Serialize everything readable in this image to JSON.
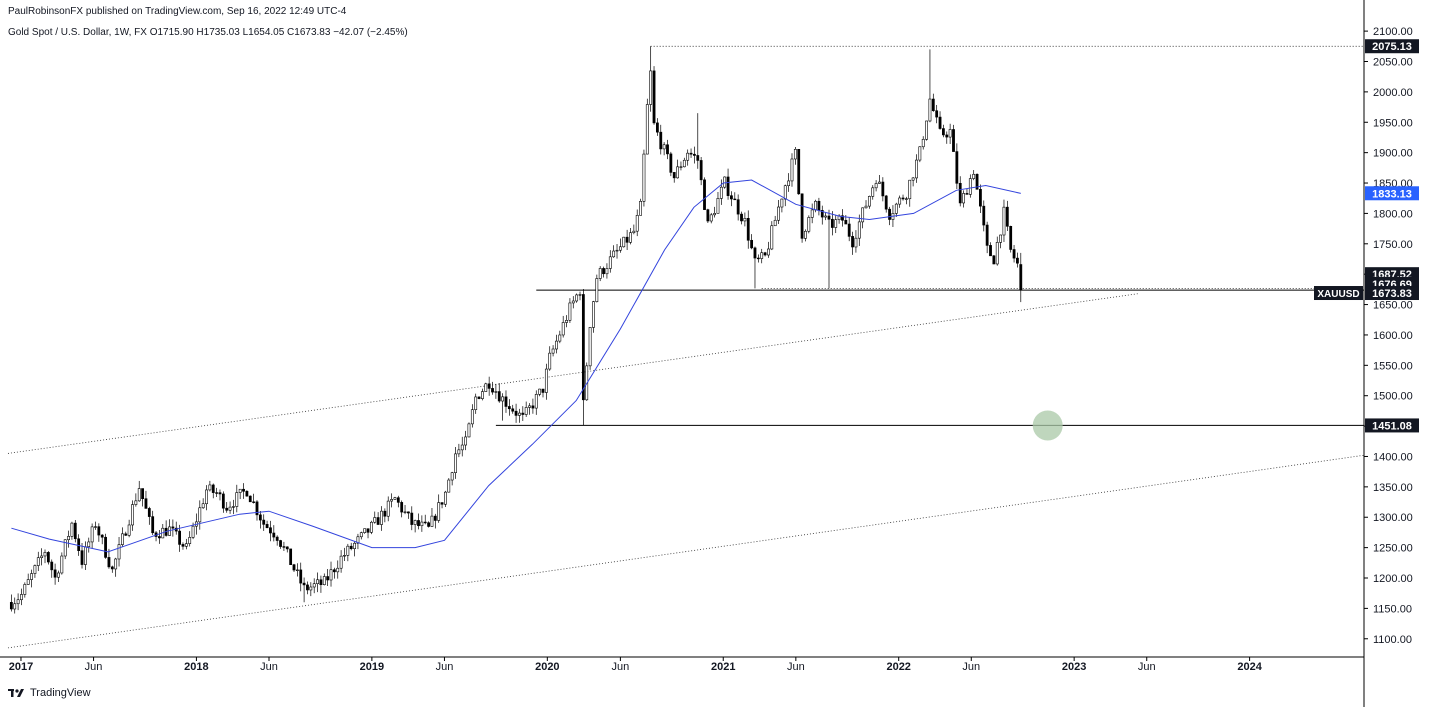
{
  "header": {
    "published_by": "PaulRobinsonFX published on TradingView.com, Sep 16, 2022 12:49 UTC-4",
    "symbol_line": "Gold Spot / U.S. Dollar, 1W, FX  O1715.90  H1735.03  L1654.05  C1673.83  −42.07 (−2.45%)"
  },
  "footer": {
    "logo_text": "TradingView"
  },
  "colors": {
    "up": "#000000",
    "down": "#000000",
    "ma": "#3344dd",
    "axis_text": "#131722",
    "ma_tag": "#2962ff",
    "label_bg": "#131722",
    "circle": "#a9c8a7"
  },
  "chart_data": {
    "type": "candlestick",
    "symbol": "XAUUSD",
    "interval": "1W",
    "y_axis": {
      "ticks": [
        1100,
        1150,
        1200,
        1250,
        1300,
        1350,
        1400,
        1450,
        1500,
        1550,
        1600,
        1650,
        1700,
        1750,
        1800,
        1850,
        1900,
        1950,
        2000,
        2050,
        2100
      ],
      "tick_labels": [
        "1100.00",
        "1150.00",
        "1200.00",
        "1250.00",
        "1300.00",
        "1350.00",
        "1400.00",
        "1450.00",
        "1500.00",
        "1550.00",
        "1600.00",
        "1650.00",
        "1700.00",
        "1750.00",
        "1800.00",
        "1850.00",
        "1900.00",
        "1950.00",
        "2000.00",
        "2050.00",
        "2100.00"
      ],
      "range": [
        1070,
        2115
      ]
    },
    "x_axis": {
      "range": [
        "2016-12-05",
        "2024-08-26"
      ],
      "ticks": [
        {
          "date": "2017-01-01",
          "label": "2017",
          "bold": true
        },
        {
          "date": "2017-06-01",
          "label": "Jun",
          "bold": false
        },
        {
          "date": "2018-01-01",
          "label": "2018",
          "bold": true
        },
        {
          "date": "2018-06-01",
          "label": "Jun",
          "bold": false
        },
        {
          "date": "2019-01-01",
          "label": "2019",
          "bold": true
        },
        {
          "date": "2019-06-01",
          "label": "Jun",
          "bold": false
        },
        {
          "date": "2020-01-01",
          "label": "2020",
          "bold": true
        },
        {
          "date": "2020-06-01",
          "label": "Jun",
          "bold": false
        },
        {
          "date": "2021-01-01",
          "label": "2021",
          "bold": true
        },
        {
          "date": "2021-06-01",
          "label": "Jun",
          "bold": false
        },
        {
          "date": "2022-01-01",
          "label": "2022",
          "bold": true
        },
        {
          "date": "2022-06-01",
          "label": "Jun",
          "bold": false
        },
        {
          "date": "2023-01-01",
          "label": "2023",
          "bold": true
        },
        {
          "date": "2023-06-01",
          "label": "Jun",
          "bold": false
        },
        {
          "date": "2024-01-01",
          "label": "2024",
          "bold": true
        }
      ]
    },
    "price_keypoints": [
      [
        "2016-12-12",
        1160
      ],
      [
        "2017-01-02",
        1172
      ],
      [
        "2017-02-20",
        1245
      ],
      [
        "2017-03-13",
        1200
      ],
      [
        "2017-04-17",
        1290
      ],
      [
        "2017-05-08",
        1228
      ],
      [
        "2017-06-05",
        1290
      ],
      [
        "2017-07-10",
        1212
      ],
      [
        "2017-09-04",
        1350
      ],
      [
        "2017-10-02",
        1273
      ],
      [
        "2017-11-06",
        1280
      ],
      [
        "2017-12-11",
        1248
      ],
      [
        "2018-01-22",
        1345
      ],
      [
        "2018-02-12",
        1340
      ],
      [
        "2018-03-05",
        1318
      ],
      [
        "2018-04-16",
        1345
      ],
      [
        "2018-05-21",
        1290
      ],
      [
        "2018-06-18",
        1270
      ],
      [
        "2018-08-13",
        1182
      ],
      [
        "2018-09-24",
        1192
      ],
      [
        "2018-10-29",
        1233
      ],
      [
        "2018-12-31",
        1283
      ],
      [
        "2019-02-18",
        1330
      ],
      [
        "2019-03-25",
        1290
      ],
      [
        "2019-04-29",
        1280
      ],
      [
        "2019-06-03",
        1340
      ],
      [
        "2019-06-24",
        1405
      ],
      [
        "2019-07-15",
        1422
      ],
      [
        "2019-08-05",
        1497
      ],
      [
        "2019-09-02",
        1523
      ],
      [
        "2019-09-30",
        1495
      ],
      [
        "2019-11-11",
        1462
      ],
      [
        "2019-12-23",
        1512
      ],
      [
        "2020-01-06",
        1562
      ],
      [
        "2020-02-17",
        1643
      ],
      [
        "2020-03-09",
        1675
      ],
      [
        "2020-03-16",
        1485
      ],
      [
        "2020-03-30",
        1620
      ],
      [
        "2020-04-13",
        1695
      ],
      [
        "2020-05-18",
        1730
      ],
      [
        "2020-06-29",
        1770
      ],
      [
        "2020-07-13",
        1810
      ],
      [
        "2020-07-27",
        1975
      ],
      [
        "2020-08-03",
        2030
      ],
      [
        "2020-08-10",
        1945
      ],
      [
        "2020-09-21",
        1860
      ],
      [
        "2020-10-19",
        1902
      ],
      [
        "2020-11-09",
        1888
      ],
      [
        "2020-11-30",
        1780
      ],
      [
        "2021-01-04",
        1850
      ],
      [
        "2021-02-15",
        1786
      ],
      [
        "2021-03-08",
        1718
      ],
      [
        "2021-03-29",
        1728
      ],
      [
        "2021-05-03",
        1830
      ],
      [
        "2021-05-31",
        1898
      ],
      [
        "2021-06-14",
        1768
      ],
      [
        "2021-07-12",
        1812
      ],
      [
        "2021-08-09",
        1780
      ],
      [
        "2021-09-06",
        1790
      ],
      [
        "2021-09-27",
        1755
      ],
      [
        "2021-11-15",
        1860
      ],
      [
        "2021-12-13",
        1800
      ],
      [
        "2022-01-17",
        1835
      ],
      [
        "2022-02-14",
        1900
      ],
      [
        "2022-03-07",
        1988
      ],
      [
        "2022-03-28",
        1930
      ],
      [
        "2022-04-18",
        1935
      ],
      [
        "2022-05-09",
        1812
      ],
      [
        "2022-06-06",
        1872
      ],
      [
        "2022-07-04",
        1740
      ],
      [
        "2022-07-18",
        1726
      ],
      [
        "2022-08-08",
        1800
      ],
      [
        "2022-08-22",
        1738
      ],
      [
        "2022-09-05",
        1716
      ],
      [
        "2022-09-12",
        1673.83
      ]
    ],
    "last_candle": {
      "date": "2022-09-12",
      "open": 1715.9,
      "high": 1735.03,
      "low": 1654.05,
      "close": 1673.83
    },
    "moving_average": [
      [
        "2016-12-12",
        1282
      ],
      [
        "2017-03-01",
        1264
      ],
      [
        "2017-07-01",
        1243
      ],
      [
        "2017-11-01",
        1277
      ],
      [
        "2018-04-01",
        1305
      ],
      [
        "2018-06-01",
        1310
      ],
      [
        "2018-09-01",
        1285
      ],
      [
        "2019-01-01",
        1250
      ],
      [
        "2019-04-01",
        1250
      ],
      [
        "2019-06-01",
        1262
      ],
      [
        "2019-09-01",
        1352
      ],
      [
        "2019-12-01",
        1420
      ],
      [
        "2020-03-01",
        1492
      ],
      [
        "2020-06-01",
        1610
      ],
      [
        "2020-09-01",
        1740
      ],
      [
        "2020-11-01",
        1810
      ],
      [
        "2021-01-01",
        1850
      ],
      [
        "2021-03-01",
        1855
      ],
      [
        "2021-06-01",
        1815
      ],
      [
        "2021-09-01",
        1795
      ],
      [
        "2021-11-01",
        1790
      ],
      [
        "2022-02-01",
        1800
      ],
      [
        "2022-05-01",
        1838
      ],
      [
        "2022-07-01",
        1846
      ],
      [
        "2022-09-12",
        1833
      ]
    ],
    "horizontal_levels": [
      {
        "price": 2075.13,
        "label": "2075.13",
        "style": "dotted",
        "from": "2020-08-03"
      },
      {
        "price": 1676.69,
        "label": "1676.69",
        "style": "dotted",
        "from": "2021-03-22"
      },
      {
        "price": 1673.83,
        "label": "1673.83",
        "style": "solid",
        "from": "2019-12-09"
      },
      {
        "price": 1451.08,
        "label": "1451.08",
        "style": "solid",
        "from": "2019-09-16"
      }
    ],
    "trend_lines": [
      {
        "from": [
          "2016-12-05",
          1405
        ],
        "to": [
          "2023-05-15",
          1668
        ],
        "style": "dotted"
      },
      {
        "from": [
          "2016-12-05",
          1085
        ],
        "to": [
          "2024-08-26",
          1402
        ],
        "style": "dotted"
      }
    ],
    "annotations": [
      {
        "type": "circle",
        "date": "2022-11-07",
        "price": 1451
      }
    ],
    "price_labels": [
      {
        "text": "2075.13",
        "price": 2075.13,
        "style": "dark"
      },
      {
        "text": "1833.13",
        "price": 1833.13,
        "style": "blue"
      },
      {
        "text": "1687.52",
        "price": 1700,
        "style": "dark"
      },
      {
        "text": "1676.69",
        "price": 1684,
        "style": "dark"
      },
      {
        "text": "1673.83",
        "price": 1669,
        "style": "dark",
        "tag": "XAUUSD"
      },
      {
        "text": "1451.08",
        "price": 1451.08,
        "style": "dark"
      }
    ]
  }
}
